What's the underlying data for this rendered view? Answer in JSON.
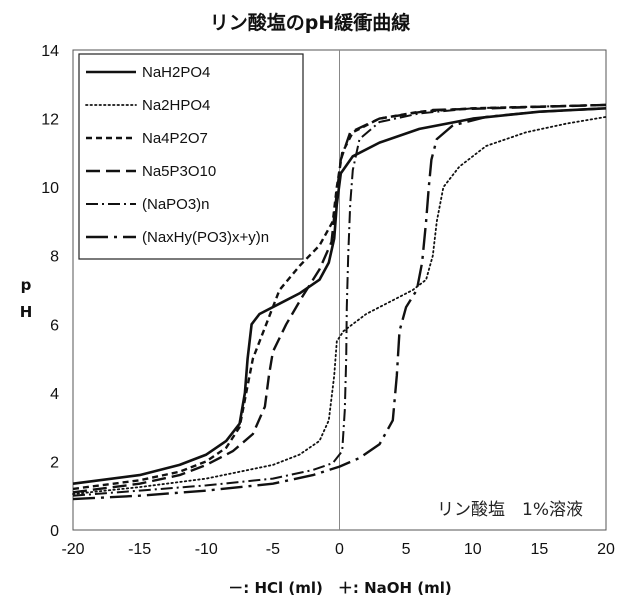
{
  "chart_data": {
    "type": "line",
    "title": "リン酸塩のpH緩衝曲線",
    "xlabel": "－: HCl (ml)　＋: NaOH (ml)",
    "ylabel_lines": [
      "p",
      "H"
    ],
    "xlim": [
      -20,
      20
    ],
    "ylim": [
      0,
      14
    ],
    "xticks": [
      -20,
      -15,
      -10,
      -5,
      0,
      5,
      10,
      15,
      20
    ],
    "yticks": [
      0,
      2,
      4,
      6,
      8,
      10,
      12,
      14
    ],
    "xtick_labels": [
      "-20",
      "-15",
      "-10",
      "-5",
      "0",
      "5",
      "10",
      "15",
      "20"
    ],
    "ytick_labels": [
      "0",
      "2",
      "4",
      "6",
      "8",
      "10",
      "12",
      "14"
    ],
    "grid": "vertical at x=0 only",
    "legend_position": "top-left",
    "annotation": "リン酸塩　1%溶液",
    "series": [
      {
        "name": "NaH2PO4",
        "dash": "solid",
        "width": 2.6,
        "points": [
          [
            -20,
            1.35
          ],
          [
            -15,
            1.6
          ],
          [
            -12,
            1.9
          ],
          [
            -10,
            2.2
          ],
          [
            -8.5,
            2.6
          ],
          [
            -7.5,
            3.1
          ],
          [
            -7.1,
            4.0
          ],
          [
            -6.9,
            5.0
          ],
          [
            -6.6,
            6.0
          ],
          [
            -6.0,
            6.3
          ],
          [
            -4.5,
            6.6
          ],
          [
            -3.0,
            6.9
          ],
          [
            -1.5,
            7.3
          ],
          [
            -0.8,
            7.8
          ],
          [
            -0.4,
            8.5
          ],
          [
            -0.2,
            9.5
          ],
          [
            0.1,
            10.4
          ],
          [
            1.0,
            10.9
          ],
          [
            3.0,
            11.3
          ],
          [
            6.0,
            11.7
          ],
          [
            10.0,
            12.0
          ],
          [
            15.0,
            12.2
          ],
          [
            20.0,
            12.3
          ]
        ]
      },
      {
        "name": "Na2HPO4",
        "dash": "dotted",
        "width": 1.8,
        "points": [
          [
            -20,
            1.05
          ],
          [
            -15,
            1.25
          ],
          [
            -10,
            1.5
          ],
          [
            -5,
            1.9
          ],
          [
            -3,
            2.2
          ],
          [
            -1.5,
            2.6
          ],
          [
            -0.8,
            3.2
          ],
          [
            -0.4,
            4.5
          ],
          [
            -0.2,
            5.5
          ],
          [
            0.3,
            5.8
          ],
          [
            2.0,
            6.3
          ],
          [
            4.0,
            6.7
          ],
          [
            5.5,
            7.0
          ],
          [
            6.5,
            7.3
          ],
          [
            7.0,
            8.0
          ],
          [
            7.3,
            9.0
          ],
          [
            7.8,
            10.0
          ],
          [
            9.0,
            10.6
          ],
          [
            11.0,
            11.2
          ],
          [
            14.0,
            11.6
          ],
          [
            17.0,
            11.85
          ],
          [
            20.0,
            12.05
          ]
        ]
      },
      {
        "name": "Na4P2O7",
        "dash": "6,4",
        "width": 2.4,
        "points": [
          [
            -20,
            1.2
          ],
          [
            -15,
            1.45
          ],
          [
            -12,
            1.7
          ],
          [
            -10,
            2.0
          ],
          [
            -8.5,
            2.4
          ],
          [
            -7.5,
            3.0
          ],
          [
            -7.0,
            4.0
          ],
          [
            -6.5,
            5.0
          ],
          [
            -5.5,
            6.0
          ],
          [
            -4.5,
            7.0
          ],
          [
            -3.0,
            7.7
          ],
          [
            -1.5,
            8.3
          ],
          [
            -0.5,
            9.0
          ],
          [
            -0.2,
            10.0
          ],
          [
            0.2,
            11.0
          ],
          [
            1.0,
            11.6
          ],
          [
            3.0,
            12.0
          ],
          [
            6.0,
            12.2
          ],
          [
            10.0,
            12.3
          ],
          [
            20.0,
            12.4
          ]
        ]
      },
      {
        "name": "Na5P3O10",
        "dash": "14,6",
        "width": 2.4,
        "points": [
          [
            -20,
            1.1
          ],
          [
            -15,
            1.35
          ],
          [
            -12,
            1.6
          ],
          [
            -10,
            1.9
          ],
          [
            -8.0,
            2.3
          ],
          [
            -6.5,
            2.8
          ],
          [
            -5.6,
            3.6
          ],
          [
            -5.3,
            4.5
          ],
          [
            -5.0,
            5.2
          ],
          [
            -4.0,
            6.0
          ],
          [
            -2.8,
            6.8
          ],
          [
            -1.5,
            7.6
          ],
          [
            -0.6,
            8.4
          ],
          [
            -0.3,
            9.5
          ],
          [
            0.1,
            10.8
          ],
          [
            0.8,
            11.6
          ],
          [
            3.0,
            12.0
          ],
          [
            7.0,
            12.25
          ],
          [
            20.0,
            12.4
          ]
        ]
      },
      {
        "name": "(NaPO3)n",
        "dash": "12,4,2,4",
        "width": 2.0,
        "points": [
          [
            -20,
            1.0
          ],
          [
            -15,
            1.15
          ],
          [
            -10,
            1.3
          ],
          [
            -5,
            1.5
          ],
          [
            -2,
            1.75
          ],
          [
            -0.5,
            1.95
          ],
          [
            0.2,
            2.3
          ],
          [
            0.4,
            3.5
          ],
          [
            0.5,
            5.0
          ],
          [
            0.55,
            6.5
          ],
          [
            0.65,
            8.0
          ],
          [
            0.8,
            9.5
          ],
          [
            1.0,
            10.5
          ],
          [
            1.5,
            11.4
          ],
          [
            3.0,
            11.9
          ],
          [
            6.0,
            12.15
          ],
          [
            10.0,
            12.3
          ],
          [
            20.0,
            12.4
          ]
        ]
      },
      {
        "name": "(NaxHy(PO3)x+y)n",
        "dash": "22,6,3,6",
        "width": 2.4,
        "points": [
          [
            -20,
            0.9
          ],
          [
            -15,
            1.0
          ],
          [
            -10,
            1.15
          ],
          [
            -5,
            1.35
          ],
          [
            -2,
            1.6
          ],
          [
            0,
            1.85
          ],
          [
            1.5,
            2.1
          ],
          [
            3.0,
            2.5
          ],
          [
            4.0,
            3.2
          ],
          [
            4.3,
            4.5
          ],
          [
            4.5,
            5.8
          ],
          [
            5.0,
            6.5
          ],
          [
            5.8,
            7.0
          ],
          [
            6.2,
            7.8
          ],
          [
            6.5,
            9.0
          ],
          [
            6.7,
            10.0
          ],
          [
            6.9,
            10.8
          ],
          [
            7.3,
            11.4
          ],
          [
            8.5,
            11.8
          ],
          [
            11.0,
            12.05
          ],
          [
            15.0,
            12.2
          ],
          [
            20.0,
            12.3
          ]
        ]
      }
    ]
  }
}
